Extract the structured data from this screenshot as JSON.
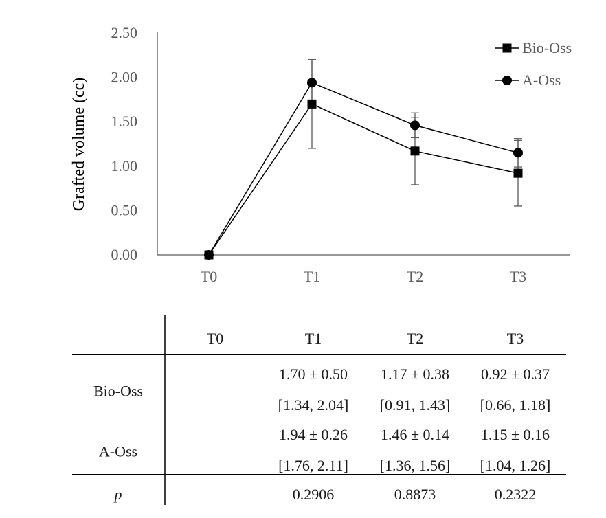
{
  "chart_data": {
    "type": "line",
    "title": "",
    "xlabel": "",
    "ylabel": "Grafted volume (cc)",
    "categories": [
      "T0",
      "T1",
      "T2",
      "T3"
    ],
    "ylim": [
      0,
      2.5
    ],
    "yticks": [
      "0.00",
      "0.50",
      "1.00",
      "1.50",
      "2.00",
      "2.50"
    ],
    "ytick_values": [
      0,
      0.5,
      1.0,
      1.5,
      2.0,
      2.5
    ],
    "grid": false,
    "legend_position": "top-right",
    "series": [
      {
        "name": "Bio-Oss",
        "marker": "square",
        "values": [
          0,
          1.7,
          1.17,
          0.92
        ],
        "error": [
          0,
          0.5,
          0.38,
          0.37
        ]
      },
      {
        "name": "A-Oss",
        "marker": "circle",
        "values": [
          0,
          1.94,
          1.46,
          1.15
        ],
        "error": [
          0,
          0.26,
          0.14,
          0.16
        ]
      }
    ]
  },
  "table": {
    "headers": [
      "",
      "T0",
      "T1",
      "T2",
      "T3"
    ],
    "groups": [
      {
        "label": "Bio-Oss",
        "mean_sd": [
          "",
          "1.70 ± 0.50",
          "1.17 ± 0.38",
          "0.92 ± 0.37"
        ],
        "ci": [
          "",
          "[1.34, 2.04]",
          "[0.91, 1.43]",
          "[0.66, 1.18]"
        ]
      },
      {
        "label": "A-Oss",
        "mean_sd": [
          "",
          "1.94 ± 0.26",
          "1.46 ± 0.14",
          "1.15 ± 0.16"
        ],
        "ci": [
          "",
          "[1.76, 2.11]",
          "[1.36, 1.56]",
          "[1.04, 1.26]"
        ]
      }
    ],
    "p_label": "p",
    "p_values": [
      "",
      "0.2906",
      "0.8873",
      "0.2322"
    ]
  }
}
